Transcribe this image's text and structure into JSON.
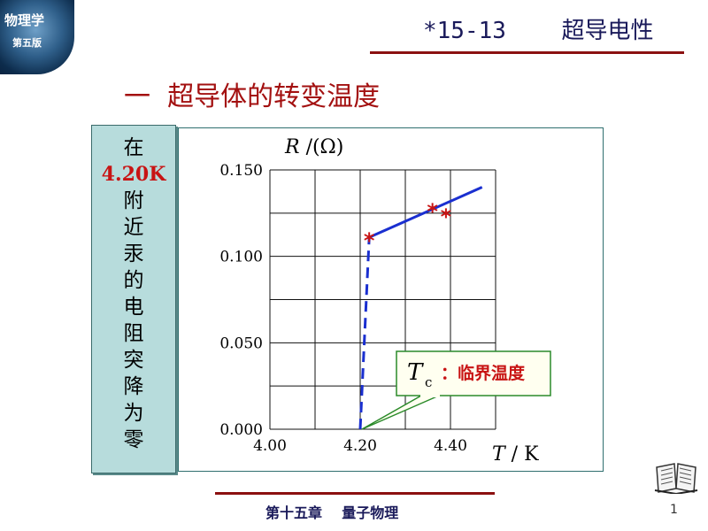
{
  "logo": {
    "title": "物理学",
    "subtitle": "第五版"
  },
  "header": {
    "title": "*15-13    超导电性"
  },
  "section": {
    "title": "一  超导体的转变温度"
  },
  "side_text": {
    "line1": "在",
    "highlight": "4.20K",
    "rest": [
      "附",
      "近",
      "汞",
      "的",
      "电",
      "阻",
      "突",
      "降",
      "为",
      "零"
    ]
  },
  "chart_data": {
    "type": "line",
    "xlabel_var": "T",
    "xlabel_unit": "/ K",
    "ylabel_var": "R",
    "ylabel_unit": "/(Ω)",
    "x_ticks": [
      "4.00",
      "4.20",
      "4.40"
    ],
    "y_ticks": [
      "0.150",
      "0.100",
      "0.050",
      "0.000"
    ],
    "xlim": [
      4.0,
      4.5
    ],
    "ylim": [
      0.0,
      0.15
    ],
    "series": [
      {
        "style": "solid",
        "color": "#1a2fd0",
        "points": [
          [
            4.22,
            0.111
          ],
          [
            4.47,
            0.14
          ]
        ]
      },
      {
        "style": "dashed",
        "color": "#1a2fd0",
        "points": [
          [
            4.2,
            0.0
          ],
          [
            4.22,
            0.111
          ]
        ]
      }
    ],
    "markers": [
      {
        "x": 4.22,
        "y": 0.111,
        "symbol": "*",
        "color": "#c81414"
      },
      {
        "x": 4.36,
        "y": 0.128,
        "symbol": "*",
        "color": "#c81414"
      },
      {
        "x": 4.39,
        "y": 0.125,
        "symbol": "*",
        "color": "#c81414"
      }
    ],
    "annotation": {
      "var": "T",
      "sub": "c",
      "text": "：临界温度",
      "text_color": "#c81414",
      "arrow_to": [
        4.2,
        0.0
      ]
    }
  },
  "footer": {
    "text": "第十五章    量子物理",
    "page": "1"
  }
}
